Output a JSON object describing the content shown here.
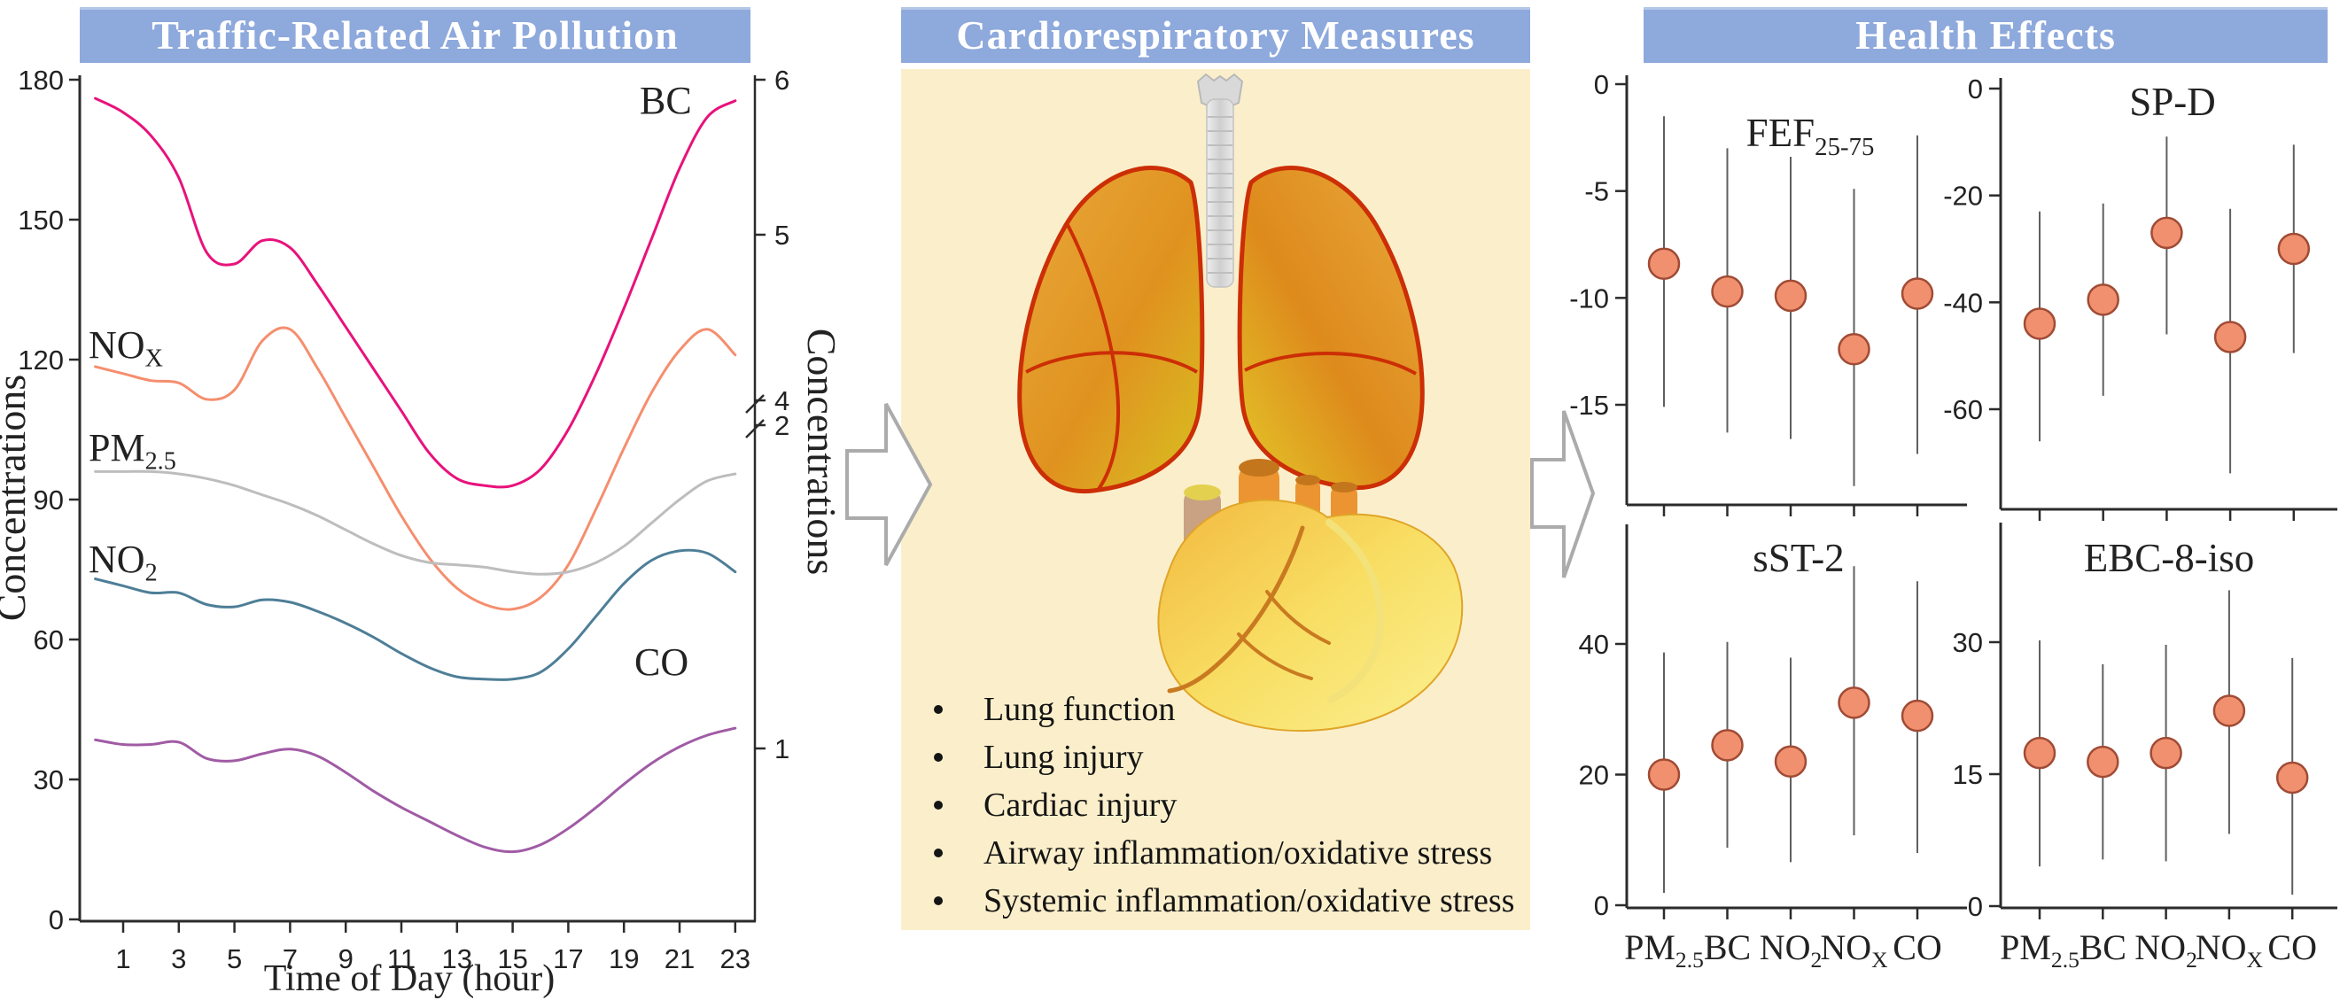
{
  "header": {
    "left_title": "Traffic-Related Air Pollution",
    "middle_title": "Cardiorespiratory Measures",
    "right_title": "Health Effects"
  },
  "middle_panel": {
    "bullets": [
      "Lung function",
      "Lung injury",
      "Cardiac injury",
      "Airway inflammation/oxidative stress",
      "Systemic inflammation/oxidative stress"
    ]
  },
  "colors": {
    "header_bg": "#8EA9DC",
    "header_text": "#FFFFFF",
    "panel_cream": "#FBEFCB",
    "axis": "#2b2b2b",
    "tick_text": "#222222",
    "bc": "#E8127C",
    "nox": "#F58E6E",
    "pm25": "#BDBDBD",
    "no2": "#4E7E97",
    "co": "#A05BA5",
    "forest_point_fill": "#F0906F",
    "forest_point_stroke": "#A04B35",
    "error_bar": "#5f5f5f",
    "arrow_outline": "#ABABAB"
  },
  "chart_data": [
    {
      "id": "traffic-pollution-diurnal",
      "type": "line",
      "title": "Traffic-Related Air Pollution",
      "xlabel": "Time of Day (hour)",
      "ylabel_left": "Concentrations",
      "ylabel_right": "Concentrations",
      "x_ticks": [
        1,
        3,
        5,
        7,
        9,
        11,
        13,
        15,
        17,
        19,
        21,
        23
      ],
      "ylim_left": [
        0,
        180
      ],
      "y_ticks_left": [
        0,
        30,
        60,
        90,
        120,
        150,
        180
      ],
      "right_axis": {
        "ticks": [
          "6",
          "5",
          "4",
          "2",
          "1"
        ],
        "axis_break_between": [
          "4",
          "2"
        ]
      },
      "grid": false,
      "hours": [
        0,
        1,
        2,
        3,
        4,
        5,
        6,
        7,
        8,
        9,
        10,
        11,
        12,
        13,
        14,
        15,
        16,
        17,
        18,
        19,
        20,
        21,
        22,
        23
      ],
      "series": [
        {
          "name": "BC",
          "label_base": "BC",
          "label_sub": "",
          "color_key": "bc",
          "values": [
            176,
            173,
            168,
            159,
            143,
            140.5,
            145.5,
            144,
            136,
            127,
            118,
            109,
            100,
            94.5,
            93,
            93,
            96.5,
            105,
            117,
            131,
            146,
            161,
            172,
            175.5
          ]
        },
        {
          "name": "NOX",
          "label_base": "NO",
          "label_sub": "X",
          "color_key": "nox",
          "values": [
            118.5,
            117,
            115.5,
            115,
            111.5,
            113.5,
            124,
            126.5,
            118,
            107.5,
            97,
            86.5,
            77.5,
            71,
            67.5,
            66.5,
            69,
            76,
            88,
            101,
            113,
            122,
            126.5,
            121
          ]
        },
        {
          "name": "PM25",
          "label_base": "PM",
          "label_sub": "2.5",
          "color_key": "pm25",
          "values": [
            96,
            96,
            96,
            95.5,
            94.5,
            93,
            91,
            89,
            86.5,
            83.5,
            80.5,
            78,
            76.5,
            76,
            75.5,
            74.5,
            74,
            74.5,
            76.5,
            80,
            85,
            90,
            94,
            95.5
          ]
        },
        {
          "name": "NO2",
          "label_base": "NO",
          "label_sub": "2",
          "color_key": "no2",
          "values": [
            73,
            71.5,
            70,
            70,
            67.5,
            67,
            68.5,
            68,
            66,
            63.5,
            60.5,
            57,
            54,
            52,
            51.5,
            51.5,
            53,
            58,
            65,
            72,
            77,
            79,
            78.5,
            74.5
          ]
        },
        {
          "name": "CO",
          "label_base": "CO",
          "label_sub": "",
          "color_key": "co",
          "values": [
            38.5,
            37.5,
            37.5,
            38,
            34.5,
            34,
            35.5,
            36.5,
            35,
            31.5,
            27.5,
            24,
            21,
            18,
            15.5,
            14.5,
            16,
            19.5,
            24,
            29,
            33.5,
            37,
            39.5,
            41
          ]
        }
      ]
    },
    {
      "id": "fef25-75",
      "type": "scatter",
      "title_base": "FEF",
      "title_sub": "25-75",
      "categories": [
        {
          "base": "PM",
          "sub": "2.5"
        },
        {
          "base": "BC",
          "sub": ""
        },
        {
          "base": "NO",
          "sub": "2"
        },
        {
          "base": "NO",
          "sub": "X"
        },
        {
          "base": "CO",
          "sub": ""
        }
      ],
      "y_ticks": [
        0,
        -5,
        -10,
        -15
      ],
      "estimates": [
        -8.4,
        -9.7,
        -9.9,
        -12.4,
        -9.8
      ],
      "ci_upper": [
        -1.5,
        -3.0,
        -3.4,
        -4.9,
        -2.4
      ],
      "ci_lower": [
        -15.1,
        -16.3,
        -16.6,
        -18.8,
        -17.3
      ]
    },
    {
      "id": "sp-d",
      "type": "scatter",
      "title_base": "SP-D",
      "title_sub": "",
      "categories": [
        {
          "base": "PM",
          "sub": "2.5"
        },
        {
          "base": "BC",
          "sub": ""
        },
        {
          "base": "NO",
          "sub": "2"
        },
        {
          "base": "NO",
          "sub": "X"
        },
        {
          "base": "CO",
          "sub": ""
        }
      ],
      "y_ticks": [
        0,
        -20,
        -40,
        -60
      ],
      "estimates": [
        -44,
        -39.5,
        -27,
        -46.5,
        -30
      ],
      "ci_upper": [
        -23,
        -21.5,
        -9,
        -22.5,
        -10.5
      ],
      "ci_lower": [
        -66,
        -57.5,
        -46,
        -72,
        -49.5
      ]
    },
    {
      "id": "sst-2",
      "type": "scatter",
      "title_base": "sST-2",
      "title_sub": "",
      "categories": [
        {
          "base": "PM",
          "sub": "2.5"
        },
        {
          "base": "BC",
          "sub": ""
        },
        {
          "base": "NO",
          "sub": "2"
        },
        {
          "base": "NO",
          "sub": "X"
        },
        {
          "base": "CO",
          "sub": ""
        }
      ],
      "y_ticks": [
        0,
        20,
        40
      ],
      "estimates": [
        20,
        24.5,
        22,
        31,
        29
      ],
      "ci_upper": [
        38.7,
        40.3,
        37.9,
        51.9,
        49.6
      ],
      "ci_lower": [
        1.9,
        8.8,
        6.6,
        10.7,
        8.0
      ]
    },
    {
      "id": "ebc-8-iso",
      "type": "scatter",
      "title_base": "EBC-8-iso",
      "title_sub": "",
      "categories": [
        {
          "base": "PM",
          "sub": "2.5"
        },
        {
          "base": "BC",
          "sub": ""
        },
        {
          "base": "NO",
          "sub": "2"
        },
        {
          "base": "NO",
          "sub": "X"
        },
        {
          "base": "CO",
          "sub": ""
        }
      ],
      "y_ticks": [
        0,
        15,
        30
      ],
      "estimates": [
        17.4,
        16.4,
        17.4,
        22.2,
        14.6
      ],
      "ci_upper": [
        30.2,
        27.5,
        29.7,
        35.9,
        28.2
      ],
      "ci_lower": [
        4.5,
        5.3,
        5.1,
        8.2,
        1.3
      ]
    }
  ]
}
